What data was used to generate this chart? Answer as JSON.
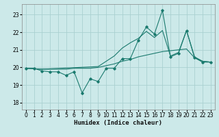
{
  "xlabel": "Humidex (Indice chaleur)",
  "xlim": [
    -0.5,
    23.5
  ],
  "ylim": [
    17.6,
    23.6
  ],
  "yticks": [
    18,
    19,
    20,
    21,
    22,
    23
  ],
  "xticks": [
    0,
    1,
    2,
    3,
    4,
    5,
    6,
    7,
    8,
    9,
    10,
    11,
    12,
    13,
    14,
    15,
    16,
    17,
    18,
    19,
    20,
    21,
    22,
    23
  ],
  "bg_color": "#cce9e9",
  "grid_color": "#aad0d0",
  "line_color": "#1a7a6e",
  "line1_x": [
    0,
    1,
    2,
    3,
    4,
    5,
    6,
    7,
    8,
    9,
    10,
    11,
    12,
    13,
    14,
    15,
    16,
    17,
    18,
    19,
    20,
    21,
    22,
    23
  ],
  "line1_y": [
    19.95,
    19.95,
    19.8,
    19.75,
    19.75,
    19.55,
    19.75,
    18.55,
    19.35,
    19.2,
    19.95,
    19.95,
    20.5,
    20.5,
    21.55,
    22.3,
    21.9,
    23.25,
    20.6,
    20.8,
    22.1,
    20.55,
    20.3,
    20.3
  ],
  "line2_x": [
    0,
    2,
    3,
    4,
    5,
    6,
    7,
    8,
    9,
    10,
    11,
    12,
    13,
    14,
    15,
    16,
    17,
    18,
    19,
    20,
    21,
    22,
    23
  ],
  "line2_y": [
    19.95,
    19.9,
    19.9,
    19.9,
    19.9,
    19.95,
    19.95,
    19.95,
    20.0,
    20.1,
    20.2,
    20.35,
    20.45,
    20.6,
    20.7,
    20.8,
    20.9,
    20.95,
    21.0,
    21.05,
    20.55,
    20.35,
    20.3
  ],
  "line3_x": [
    0,
    2,
    9,
    10,
    11,
    12,
    13,
    14,
    15,
    16,
    17,
    18,
    19,
    20,
    21,
    22,
    23
  ],
  "line3_y": [
    19.95,
    19.9,
    20.05,
    20.35,
    20.65,
    21.1,
    21.4,
    21.65,
    22.05,
    21.7,
    22.1,
    20.65,
    20.85,
    22.1,
    20.6,
    20.35,
    20.3
  ]
}
